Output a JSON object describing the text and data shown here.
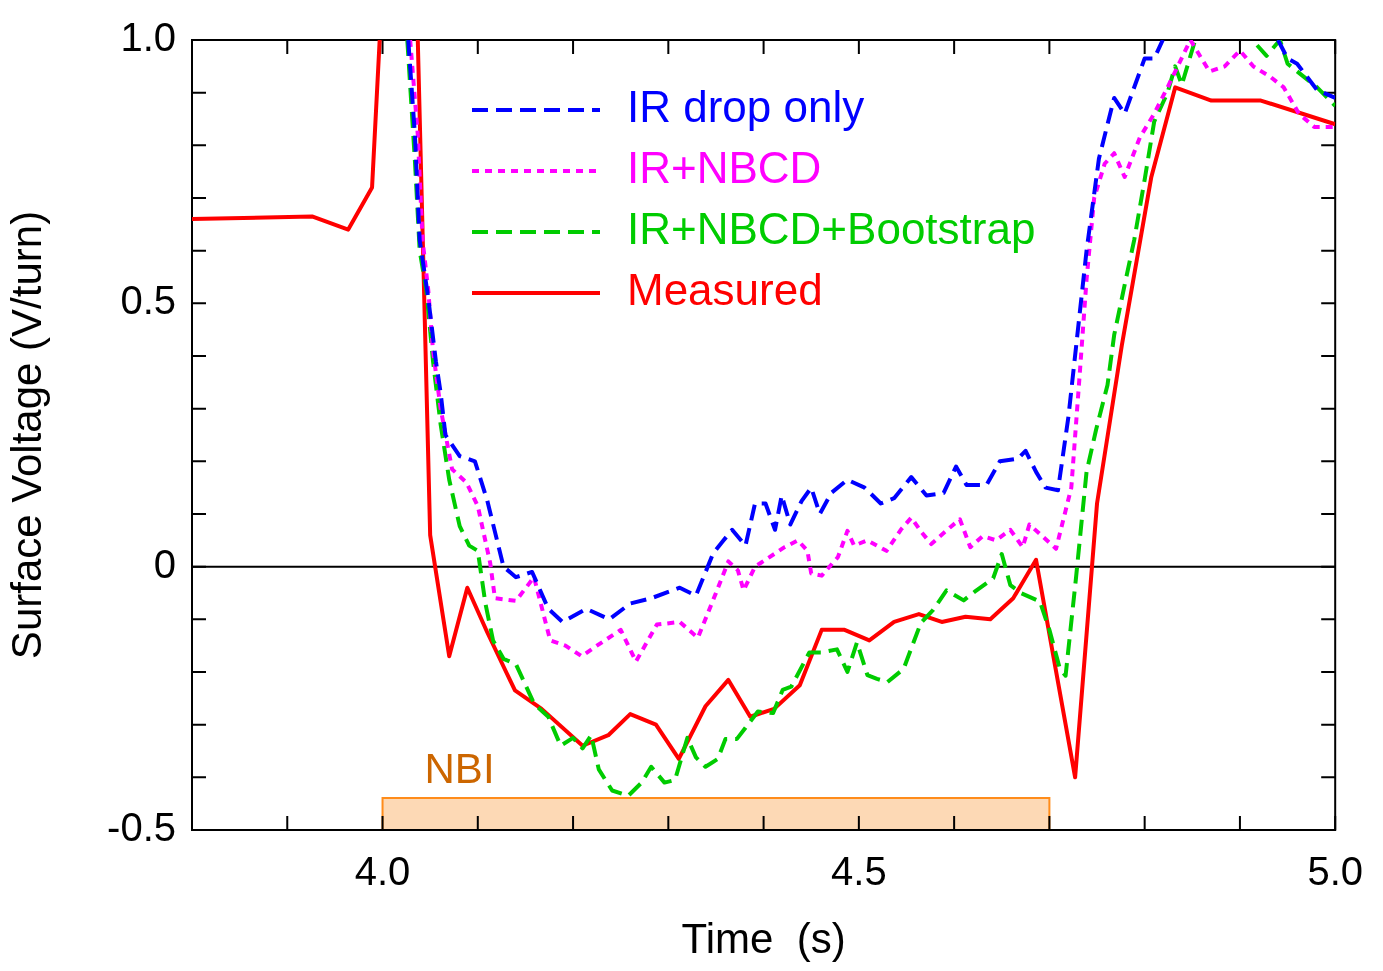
{
  "chart_data": {
    "type": "line",
    "xlabel": "Time  (s)",
    "ylabel": "Surface Voltage (V/turn)",
    "xlim": [
      3.8,
      5.0
    ],
    "ylim": [
      -0.5,
      1.0
    ],
    "xticks": [
      {
        "value": 3.9,
        "label": null
      },
      {
        "value": 4.0,
        "label": "4.0"
      },
      {
        "value": 4.1,
        "label": null
      },
      {
        "value": 4.2,
        "label": null
      },
      {
        "value": 4.3,
        "label": null
      },
      {
        "value": 4.4,
        "label": null
      },
      {
        "value": 4.5,
        "label": "4.5"
      },
      {
        "value": 4.6,
        "label": null
      },
      {
        "value": 4.7,
        "label": null
      },
      {
        "value": 4.8,
        "label": null
      },
      {
        "value": 4.9,
        "label": null
      },
      {
        "value": 5.0,
        "label": "5.0"
      }
    ],
    "yticks": [
      {
        "value": -0.5,
        "label": "-0.5"
      },
      {
        "value": -0.4,
        "label": null
      },
      {
        "value": -0.3,
        "label": null
      },
      {
        "value": -0.2,
        "label": null
      },
      {
        "value": -0.1,
        "label": null
      },
      0,
      {
        "value": 0.1,
        "label": null
      },
      {
        "value": 0.2,
        "label": null
      },
      {
        "value": 0.3,
        "label": null
      },
      {
        "value": 0.4,
        "label": null
      },
      {
        "value": 0.5,
        "label": "0.5"
      },
      {
        "value": 0.6,
        "label": null
      },
      {
        "value": 0.7,
        "label": null
      },
      {
        "value": 0.8,
        "label": null
      },
      {
        "value": 0.9,
        "label": null
      },
      {
        "value": 1.0,
        "label": "1.0"
      }
    ],
    "grid": false,
    "legend": "top",
    "marker": "none",
    "ref_lines": [
      {
        "axis": "y",
        "value": 0,
        "color": "#000000",
        "line_style": "solid"
      }
    ],
    "bands": [
      {
        "axis": "x",
        "from": 4.0,
        "to": 4.7,
        "label": "NBI",
        "color": "#fdd9b5"
      }
    ],
    "series": [
      {
        "name": "IR drop only",
        "color": "#0000ff",
        "line_style": "dashed",
        "x": [
          4.027,
          4.034,
          4.039,
          4.048,
          4.056,
          4.061,
          4.066,
          4.081,
          4.097,
          4.11,
          4.127,
          4.14,
          4.157,
          4.174,
          4.189,
          4.214,
          4.238,
          4.26,
          4.282,
          4.312,
          4.329,
          4.347,
          4.358,
          4.367,
          4.381,
          4.391,
          4.402,
          4.412,
          4.419,
          4.428,
          4.44,
          4.45,
          4.459,
          4.471,
          4.488,
          4.506,
          4.523,
          4.537,
          4.555,
          4.571,
          4.589,
          4.602,
          4.613,
          4.634,
          4.648,
          4.667,
          4.675,
          4.686,
          4.696,
          4.709,
          4.72,
          4.739,
          4.752,
          4.768,
          4.779,
          4.8,
          4.81,
          4.819,
          4.88,
          4.94,
          4.95,
          4.96,
          4.981,
          5.0
        ],
        "values": [
          1.0,
          0.82,
          0.62,
          0.51,
          0.39,
          0.33,
          0.25,
          0.21,
          0.2,
          0.125,
          0.0,
          -0.02,
          -0.01,
          -0.08,
          -0.105,
          -0.08,
          -0.1,
          -0.07,
          -0.06,
          -0.04,
          -0.055,
          0.025,
          0.05,
          0.07,
          0.04,
          0.12,
          0.12,
          0.07,
          0.135,
          0.08,
          0.125,
          0.15,
          0.1,
          0.14,
          0.165,
          0.15,
          0.12,
          0.13,
          0.17,
          0.135,
          0.14,
          0.19,
          0.155,
          0.155,
          0.2,
          0.205,
          0.22,
          0.18,
          0.15,
          0.145,
          0.285,
          0.6,
          0.775,
          0.89,
          0.86,
          0.965,
          0.965,
          1.0,
          null,
          1.0,
          0.965,
          0.955,
          0.905,
          0.89
        ]
      },
      {
        "name": "IR+NBCD",
        "color": "#ff00ff",
        "line_style": "dotted",
        "x": [
          4.029,
          4.037,
          4.042,
          4.048,
          4.053,
          4.061,
          4.073,
          4.088,
          4.1,
          4.113,
          4.118,
          4.14,
          4.159,
          4.176,
          4.192,
          4.209,
          4.225,
          4.25,
          4.266,
          4.288,
          4.312,
          4.331,
          4.35,
          4.363,
          4.373,
          4.379,
          4.391,
          4.412,
          4.422,
          4.436,
          4.446,
          4.45,
          4.461,
          4.478,
          4.488,
          4.495,
          4.509,
          4.529,
          4.544,
          4.555,
          4.566,
          4.576,
          4.596,
          4.606,
          4.617,
          4.63,
          4.644,
          4.659,
          4.672,
          4.679,
          4.69,
          4.707,
          4.723,
          4.731,
          4.739,
          4.747,
          4.758,
          4.768,
          4.779,
          4.795,
          4.81,
          4.824,
          4.848,
          4.868,
          4.884,
          4.9,
          4.914,
          4.932,
          4.946,
          4.962,
          4.978,
          5.0
        ],
        "values": [
          1.0,
          0.82,
          0.62,
          0.525,
          0.41,
          0.3,
          0.185,
          0.16,
          0.115,
          0.007,
          -0.06,
          -0.065,
          -0.02,
          -0.14,
          -0.15,
          -0.17,
          -0.15,
          -0.12,
          -0.18,
          -0.11,
          -0.105,
          -0.135,
          -0.05,
          0.01,
          -0.007,
          -0.045,
          0.0,
          0.025,
          0.037,
          0.05,
          0.03,
          -0.013,
          -0.017,
          0.018,
          0.068,
          0.04,
          0.05,
          0.03,
          0.07,
          0.093,
          0.065,
          0.043,
          0.075,
          0.09,
          0.037,
          0.058,
          0.05,
          0.07,
          0.037,
          0.08,
          0.062,
          0.034,
          0.15,
          0.345,
          0.545,
          0.7,
          0.765,
          0.785,
          0.74,
          0.815,
          0.86,
          0.91,
          1.0,
          0.94,
          0.95,
          0.98,
          0.95,
          0.93,
          0.91,
          0.86,
          0.835,
          0.835
        ]
      },
      {
        "name": "IR+NBCD+Bootstrap",
        "color": "#00cc00",
        "line_style": "dashed",
        "x": [
          4.026,
          4.034,
          4.039,
          4.046,
          4.053,
          4.061,
          4.07,
          4.081,
          4.091,
          4.1,
          4.108,
          4.116,
          4.127,
          4.14,
          4.159,
          4.174,
          4.187,
          4.2,
          4.21,
          4.219,
          4.227,
          4.241,
          4.258,
          4.272,
          4.282,
          4.296,
          4.307,
          4.32,
          4.329,
          4.339,
          4.352,
          4.36,
          4.372,
          4.381,
          4.394,
          4.41,
          4.42,
          4.429,
          4.448,
          4.461,
          4.477,
          4.488,
          4.498,
          4.509,
          4.519,
          4.53,
          4.547,
          4.565,
          4.578,
          4.592,
          4.61,
          4.622,
          4.641,
          4.65,
          4.659,
          4.67,
          4.69,
          4.7,
          4.711,
          4.717,
          4.728,
          4.739,
          4.749,
          4.761,
          4.768,
          4.779,
          4.789,
          4.8,
          4.81,
          4.824,
          4.832,
          4.839,
          4.853,
          4.885,
          4.918,
          4.928,
          4.942,
          4.95,
          4.981,
          5.0
        ],
        "values": [
          1.0,
          0.77,
          0.6,
          0.525,
          0.39,
          0.27,
          0.165,
          0.077,
          0.04,
          0.03,
          -0.07,
          -0.14,
          -0.175,
          -0.185,
          -0.26,
          -0.285,
          -0.34,
          -0.325,
          -0.345,
          -0.32,
          -0.385,
          -0.425,
          -0.435,
          -0.41,
          -0.38,
          -0.41,
          -0.405,
          -0.325,
          -0.362,
          -0.38,
          -0.365,
          -0.327,
          -0.327,
          -0.306,
          -0.275,
          -0.278,
          -0.234,
          -0.228,
          -0.163,
          -0.163,
          -0.157,
          -0.2,
          -0.144,
          -0.206,
          -0.213,
          -0.219,
          -0.194,
          -0.107,
          -0.082,
          -0.045,
          -0.064,
          -0.047,
          -0.022,
          0.024,
          -0.035,
          -0.05,
          -0.066,
          -0.12,
          -0.194,
          -0.207,
          -0.02,
          0.18,
          0.26,
          0.345,
          0.44,
          0.535,
          0.62,
          0.735,
          0.845,
          0.9,
          0.95,
          0.915,
          1.0,
          null,
          0.99,
          0.97,
          1.0,
          0.955,
          0.91,
          0.875
        ]
      },
      {
        "name": "Measured",
        "color": "#ff0000",
        "line_style": "solid",
        "x": [
          3.8,
          3.926,
          3.964,
          3.989,
          3.997,
          4.017,
          4.037,
          4.05,
          4.07,
          4.089,
          4.11,
          4.139,
          4.167,
          4.21,
          4.237,
          4.26,
          4.287,
          4.311,
          4.339,
          4.363,
          4.386,
          4.411,
          4.438,
          4.461,
          4.485,
          4.511,
          4.537,
          4.563,
          4.587,
          4.612,
          4.638,
          4.662,
          4.686,
          4.727,
          4.75,
          4.776,
          4.807,
          4.832,
          4.87,
          4.922,
          5.0
        ],
        "values": [
          0.66,
          0.665,
          0.64,
          0.72,
          1.0,
          null,
          1.0,
          0.06,
          -0.17,
          -0.04,
          -0.125,
          -0.235,
          -0.27,
          -0.34,
          -0.32,
          -0.28,
          -0.3,
          -0.365,
          -0.265,
          -0.215,
          -0.285,
          -0.27,
          -0.225,
          -0.12,
          -0.12,
          -0.14,
          -0.105,
          -0.09,
          -0.105,
          -0.095,
          -0.1,
          -0.06,
          0.013,
          -0.4,
          0.12,
          0.42,
          0.74,
          0.91,
          0.885,
          0.885,
          0.84
        ]
      }
    ]
  }
}
